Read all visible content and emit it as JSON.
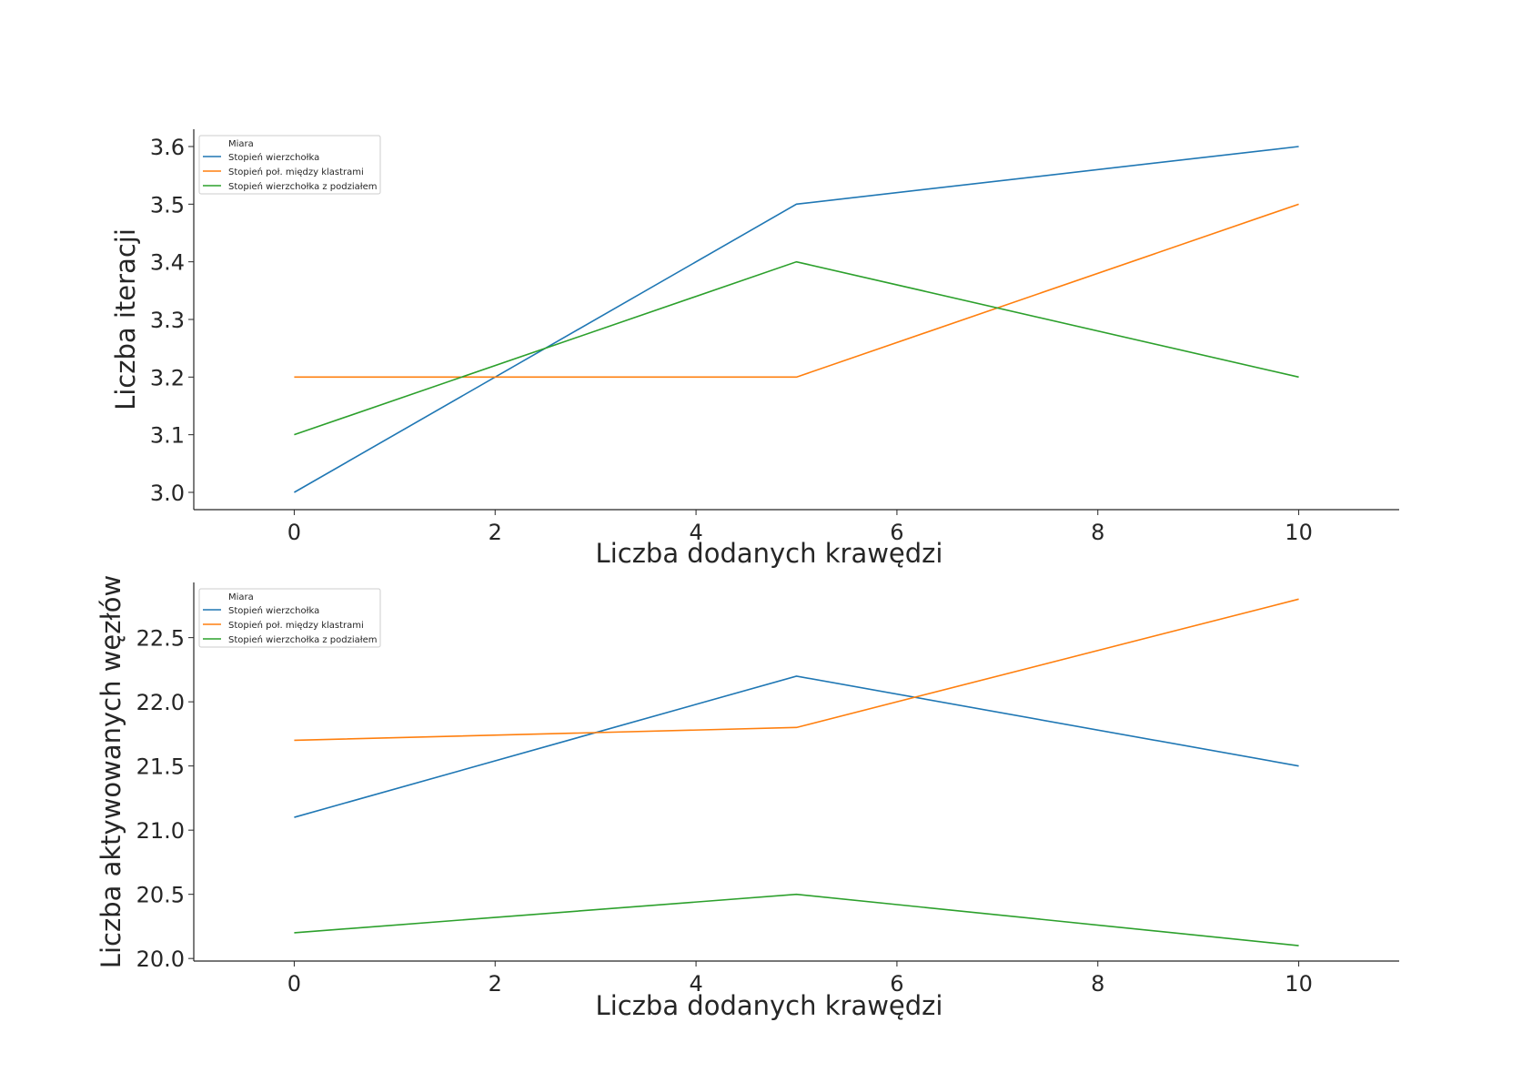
{
  "chart_data": [
    {
      "type": "line",
      "title": "",
      "xlabel": "Liczba dodanych krawędzi",
      "ylabel": "Liczba iteracji",
      "x": [
        0,
        5,
        10
      ],
      "xlim": [
        -1,
        11
      ],
      "ylim": [
        2.97,
        3.63
      ],
      "xticks": [
        0,
        2,
        4,
        6,
        8,
        10
      ],
      "xtick_labels": [
        "0",
        "2",
        "4",
        "6",
        "8",
        "10"
      ],
      "yticks": [
        3.0,
        3.1,
        3.2,
        3.3,
        3.4,
        3.5,
        3.6
      ],
      "ytick_labels": [
        "3.0",
        "3.1",
        "3.2",
        "3.3",
        "3.4",
        "3.5",
        "3.6"
      ],
      "grid": false,
      "legend_placement": "upper-left",
      "legend_title": "Miara",
      "series": [
        {
          "name": "Stopień wierzchołka",
          "color": "#1f77b4",
          "values": [
            3.0,
            3.5,
            3.6
          ]
        },
        {
          "name": "Stopień poł. między klastrami",
          "color": "#ff7f0e",
          "values": [
            3.2,
            3.2,
            3.5
          ]
        },
        {
          "name": "Stopień wierzchołka z podziałem",
          "color": "#2ca02c",
          "values": [
            3.1,
            3.4,
            3.2
          ]
        }
      ]
    },
    {
      "type": "line",
      "title": "",
      "xlabel": "Liczba dodanych krawędzi",
      "ylabel": "Liczba aktywowanych węzłów",
      "x": [
        0,
        5,
        10
      ],
      "xlim": [
        -1,
        11
      ],
      "ylim": [
        19.98,
        22.93
      ],
      "xticks": [
        0,
        2,
        4,
        6,
        8,
        10
      ],
      "xtick_labels": [
        "0",
        "2",
        "4",
        "6",
        "8",
        "10"
      ],
      "yticks": [
        20.0,
        20.5,
        21.0,
        21.5,
        22.0,
        22.5
      ],
      "ytick_labels": [
        "20.0",
        "20.5",
        "21.0",
        "21.5",
        "22.0",
        "22.5"
      ],
      "grid": false,
      "legend_placement": "upper-left",
      "legend_title": "Miara",
      "series": [
        {
          "name": "Stopień wierzchołka",
          "color": "#1f77b4",
          "values": [
            21.1,
            22.2,
            21.5
          ]
        },
        {
          "name": "Stopień poł. między klastrami",
          "color": "#ff7f0e",
          "values": [
            21.7,
            21.8,
            22.8
          ]
        },
        {
          "name": "Stopień wierzchołka z podziałem",
          "color": "#2ca02c",
          "values": [
            20.2,
            20.5,
            20.1
          ]
        }
      ]
    }
  ]
}
